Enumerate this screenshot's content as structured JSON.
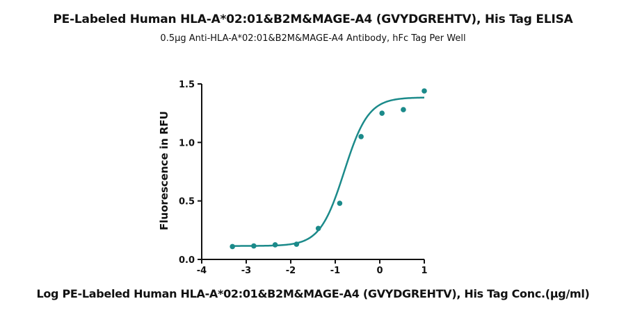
{
  "chart_data": {
    "type": "scatter",
    "title": "PE-Labeled Human HLA-A*02:01&B2M&MAGE-A4 (GVYDGREHTV), His  Tag ELISA",
    "subtitle": "0.5μg Anti-HLA-A*02:01&B2M&MAGE-A4 Antibody, hFc Tag Per Well",
    "xlabel": "Log PE-Labeled Human HLA-A*02:01&B2M&MAGE-A4 (GVYDGREHTV), His Tag Conc.(μg/ml)",
    "ylabel": "Fluorescence in RFU",
    "xlim": [
      -4,
      1
    ],
    "ylim": [
      0,
      1.5
    ],
    "x_ticks": [
      -4,
      -3,
      -2,
      -1,
      0,
      1
    ],
    "x_tick_labels": [
      "-4",
      "-3",
      "-2",
      "-1",
      "0",
      "1"
    ],
    "y_ticks": [
      0,
      0.5,
      1.0,
      1.5
    ],
    "y_tick_labels": [
      "0.0",
      "0.5",
      "1.0",
      "1.5"
    ],
    "grid": false,
    "series": [
      {
        "points": [
          {
            "x": -3.31,
            "y": 0.11
          },
          {
            "x": -2.83,
            "y": 0.115
          },
          {
            "x": -2.35,
            "y": 0.125
          },
          {
            "x": -1.87,
            "y": 0.13
          },
          {
            "x": -1.38,
            "y": 0.265
          },
          {
            "x": -0.9,
            "y": 0.48
          },
          {
            "x": -0.42,
            "y": 1.05
          },
          {
            "x": 0.05,
            "y": 1.25
          },
          {
            "x": 0.53,
            "y": 1.28
          },
          {
            "x": 1.0,
            "y": 1.44
          }
        ],
        "fit": {
          "model": "4PL",
          "bottom": 0.115,
          "top": 1.385,
          "logEC50": -0.8,
          "hill": 1.6,
          "x_range": [
            -3.31,
            1.0
          ]
        },
        "color": "#1b8a8a"
      }
    ]
  }
}
